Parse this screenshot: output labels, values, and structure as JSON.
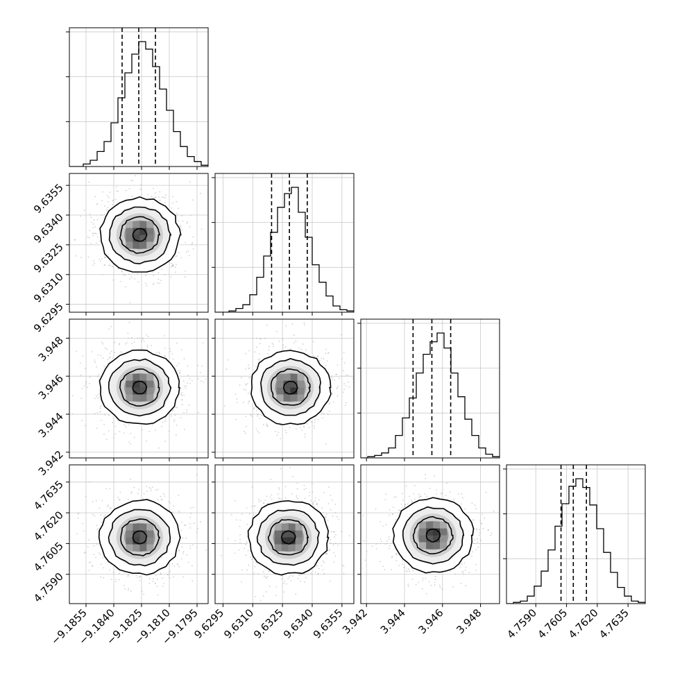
{
  "chart_data": {
    "type": "corner",
    "parameters": [
      {
        "index": 0,
        "range": [
          -9.1864,
          -9.1789
        ],
        "ticks": [
          "-9.1855",
          "-9.1840",
          "-9.1825",
          "-9.1810",
          "-9.1795"
        ],
        "tick_values": [
          -9.1855,
          -9.184,
          -9.1825,
          -9.181,
          -9.1795
        ],
        "quantiles": [
          -9.18355,
          -9.18265,
          -9.18175
        ]
      },
      {
        "index": 1,
        "range": [
          9.6291,
          9.6361
        ],
        "ticks": [
          "9.6295",
          "9.6310",
          "9.6325",
          "9.6340",
          "9.6355"
        ],
        "tick_values": [
          9.6295,
          9.631,
          9.6325,
          9.634,
          9.6355
        ],
        "quantiles": [
          9.63195,
          9.63285,
          9.63375
        ]
      },
      {
        "index": 2,
        "range": [
          3.9417,
          3.949
        ],
        "ticks": [
          "3.942",
          "3.944",
          "3.946",
          "3.948"
        ],
        "tick_values": [
          3.942,
          3.944,
          3.946,
          3.948
        ],
        "quantiles": [
          3.94445,
          3.94544,
          3.94643
        ]
      },
      {
        "index": 3,
        "range": [
          4.75757,
          4.76434
        ],
        "ticks": [
          "4.7590",
          "4.7605",
          "4.7620",
          "4.7635"
        ],
        "tick_values": [
          4.759,
          4.7605,
          4.762,
          4.7635
        ],
        "quantiles": [
          4.76023,
          4.76083,
          4.76147
        ]
      }
    ],
    "histogram_bins": 20,
    "histograms": [
      [
        0.0,
        0.0,
        0.02,
        0.05,
        0.12,
        0.2,
        0.35,
        0.55,
        0.75,
        0.9,
        1.0,
        0.94,
        0.8,
        0.62,
        0.45,
        0.28,
        0.16,
        0.08,
        0.04,
        0.01
      ],
      [
        0.0,
        0.0,
        0.01,
        0.03,
        0.06,
        0.14,
        0.28,
        0.45,
        0.64,
        0.84,
        0.95,
        1.0,
        0.8,
        0.6,
        0.38,
        0.24,
        0.13,
        0.05,
        0.02,
        0.01
      ],
      [
        0.0,
        0.01,
        0.02,
        0.04,
        0.08,
        0.18,
        0.32,
        0.48,
        0.68,
        0.83,
        0.93,
        1.0,
        0.88,
        0.68,
        0.49,
        0.31,
        0.18,
        0.08,
        0.03,
        0.01
      ],
      [
        0.0,
        0.01,
        0.02,
        0.06,
        0.14,
        0.26,
        0.43,
        0.62,
        0.8,
        0.94,
        1.0,
        0.93,
        0.79,
        0.6,
        0.41,
        0.25,
        0.13,
        0.06,
        0.02,
        0.01
      ]
    ],
    "joint_centers": {
      "1-0": [
        -9.1826,
        9.633
      ],
      "2-0": [
        -9.1826,
        3.9454
      ],
      "2-1": [
        9.6329,
        3.9454
      ],
      "3-0": [
        -9.1826,
        4.7608
      ],
      "3-1": [
        9.6328,
        4.7608
      ],
      "3-2": [
        3.9455,
        4.7609
      ]
    },
    "quantile_lines": "dashed",
    "grid": true,
    "contour_levels": 4,
    "scatter_color": "#b0b0b0",
    "density_color": "#000000"
  }
}
